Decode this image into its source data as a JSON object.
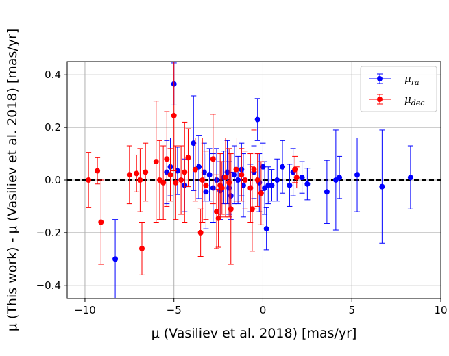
{
  "chart_data": {
    "type": "scatter",
    "xlabel": "μ (Vasiliev et al. 2018) [mas/yr]",
    "ylabel": "μ (This work) - μ (Vasiliev et al. 2018) [mas/yr]",
    "xlim": [
      -11,
      10
    ],
    "ylim": [
      -0.45,
      0.45
    ],
    "xticks": [
      -10,
      -5,
      0,
      5,
      10
    ],
    "yticks": [
      -0.4,
      -0.2,
      0.0,
      0.2,
      0.4
    ],
    "xtick_labels": [
      "−10",
      "−5",
      "0",
      "5",
      "10"
    ],
    "ytick_labels": [
      "−0.4",
      "−0.2",
      "0.0",
      "0.2",
      "0.4"
    ],
    "grid": true,
    "reference_line_y": 0,
    "legend_position": "top-right",
    "series": [
      {
        "name": "μ_ra",
        "legend_main": "μ",
        "legend_sub": "ra",
        "color": "#0000ff",
        "points": [
          [
            -8.3,
            -0.3,
            0.15
          ],
          [
            -5.0,
            0.365,
            0.08
          ],
          [
            -5.4,
            0.03,
            0.12
          ],
          [
            -5.2,
            0.05,
            0.11
          ],
          [
            -4.8,
            0.035,
            0.09
          ],
          [
            -4.4,
            -0.02,
            0.1
          ],
          [
            -3.9,
            0.14,
            0.18
          ],
          [
            -3.6,
            0.05,
            0.12
          ],
          [
            -3.3,
            0.03,
            0.11
          ],
          [
            -3.2,
            -0.045,
            0.14
          ],
          [
            -3.0,
            0.02,
            0.1
          ],
          [
            -2.8,
            -0.03,
            0.13
          ],
          [
            -2.6,
            0.0,
            0.12
          ],
          [
            -2.4,
            -0.04,
            0.11
          ],
          [
            -2.2,
            0.01,
            0.1
          ],
          [
            -2.0,
            0.03,
            0.12
          ],
          [
            -1.9,
            -0.03,
            0.1
          ],
          [
            -1.8,
            -0.06,
            0.09
          ],
          [
            -1.6,
            0.02,
            0.11
          ],
          [
            -1.4,
            0.0,
            0.09
          ],
          [
            -1.2,
            0.04,
            0.1
          ],
          [
            -1.1,
            -0.02,
            0.12
          ],
          [
            -0.7,
            -0.03,
            0.09
          ],
          [
            -0.5,
            0.03,
            0.1
          ],
          [
            -0.3,
            0.23,
            0.08
          ],
          [
            -0.2,
            -0.01,
            0.11
          ],
          [
            0.0,
            0.05,
            0.09
          ],
          [
            0.1,
            -0.03,
            0.1
          ],
          [
            0.2,
            -0.185,
            0.08
          ],
          [
            0.3,
            -0.02,
            0.07
          ],
          [
            0.5,
            -0.02,
            0.06
          ],
          [
            0.8,
            0.0,
            0.08
          ],
          [
            1.1,
            0.05,
            0.1
          ],
          [
            1.5,
            -0.02,
            0.08
          ],
          [
            1.7,
            0.03,
            0.09
          ],
          [
            2.2,
            0.01,
            0.06
          ],
          [
            2.5,
            -0.015,
            0.06
          ],
          [
            3.6,
            -0.045,
            0.12
          ],
          [
            4.1,
            0.0,
            0.19
          ],
          [
            4.3,
            0.01,
            0.08
          ],
          [
            5.3,
            0.02,
            0.14
          ],
          [
            6.7,
            -0.025,
            0.215
          ],
          [
            8.3,
            0.01,
            0.12
          ]
        ]
      },
      {
        "name": "μ_dec",
        "legend_main": "μ",
        "legend_sub": "dec",
        "color": "#ff0000",
        "points": [
          [
            -9.8,
            0.0,
            0.105
          ],
          [
            -9.3,
            0.035,
            0.05
          ],
          [
            -9.1,
            -0.16,
            0.16
          ],
          [
            -7.5,
            0.02,
            0.11
          ],
          [
            -7.1,
            0.025,
            0.07
          ],
          [
            -6.9,
            0.0,
            0.12
          ],
          [
            -6.8,
            -0.26,
            0.1
          ],
          [
            -6.6,
            0.03,
            0.11
          ],
          [
            -6.0,
            0.07,
            0.23
          ],
          [
            -5.8,
            0.0,
            0.15
          ],
          [
            -5.6,
            -0.01,
            0.14
          ],
          [
            -5.4,
            0.08,
            0.18
          ],
          [
            -5.2,
            0.02,
            0.1
          ],
          [
            -5.0,
            0.245,
            0.21
          ],
          [
            -4.9,
            -0.01,
            0.14
          ],
          [
            -4.6,
            0.0,
            0.13
          ],
          [
            -4.4,
            0.03,
            0.19
          ],
          [
            -4.2,
            0.085,
            0.11
          ],
          [
            -3.8,
            0.04,
            0.12
          ],
          [
            -3.5,
            -0.2,
            0.09
          ],
          [
            -3.4,
            0.0,
            0.16
          ],
          [
            -3.2,
            -0.02,
            0.13
          ],
          [
            -2.8,
            0.08,
            0.17
          ],
          [
            -2.6,
            -0.12,
            0.14
          ],
          [
            -2.5,
            -0.145,
            0.11
          ],
          [
            -2.4,
            -0.02,
            0.12
          ],
          [
            -2.3,
            -0.03,
            0.1
          ],
          [
            -2.1,
            0.01,
            0.15
          ],
          [
            -1.9,
            -0.01,
            0.13
          ],
          [
            -1.8,
            -0.11,
            0.21
          ],
          [
            -1.5,
            0.04,
            0.12
          ],
          [
            -1.2,
            0.02,
            0.1
          ],
          [
            -1.0,
            0.0,
            0.11
          ],
          [
            -0.7,
            -0.03,
            0.13
          ],
          [
            -0.6,
            -0.11,
            0.16
          ],
          [
            -0.5,
            0.04,
            0.15
          ],
          [
            -0.3,
            0.0,
            0.1
          ],
          [
            -0.1,
            -0.05,
            0.12
          ],
          [
            1.8,
            0.04,
            0.05
          ],
          [
            1.9,
            0.01,
            0.04
          ]
        ]
      }
    ]
  }
}
